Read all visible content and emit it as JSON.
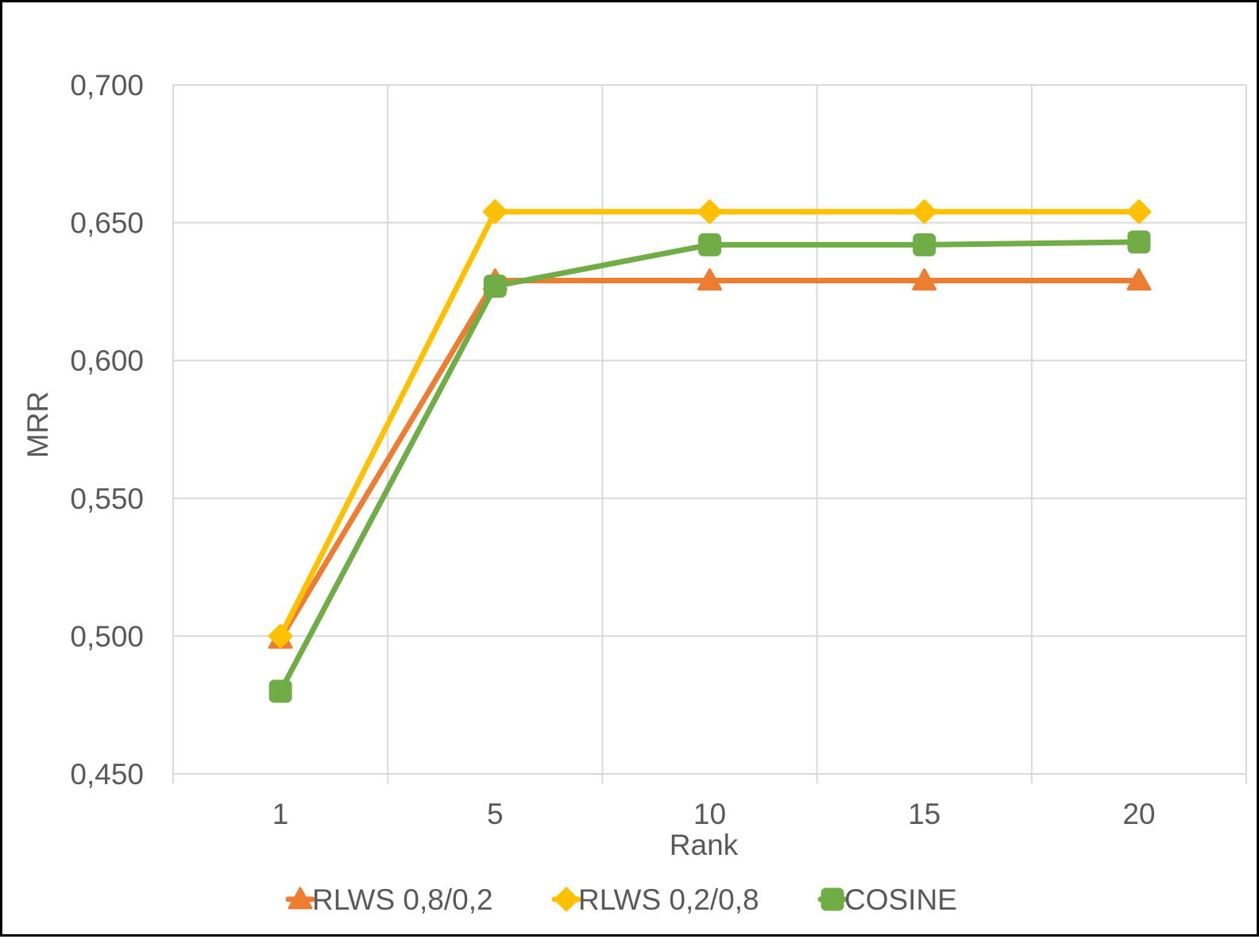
{
  "chart_data": {
    "type": "line",
    "title": "",
    "xlabel": "Rank",
    "ylabel": "MRR",
    "categories": [
      "1",
      "5",
      "10",
      "15",
      "20"
    ],
    "ylim": [
      0.45,
      0.7
    ],
    "y_ticks": [
      "0,700",
      "0,650",
      "0,600",
      "0,550",
      "0,500",
      "0,450"
    ],
    "y_tick_values": [
      0.7,
      0.65,
      0.6,
      0.55,
      0.5,
      0.45
    ],
    "grid": true,
    "legend_position": "bottom",
    "series": [
      {
        "name": "RLWS 0,8/0,2",
        "values": [
          0.499,
          0.629,
          0.629,
          0.629,
          0.629
        ],
        "color": "#ED7D31",
        "marker": "triangle"
      },
      {
        "name": "RLWS 0,2/0,8",
        "values": [
          0.5,
          0.654,
          0.654,
          0.654,
          0.654
        ],
        "color": "#FFC000",
        "marker": "diamond"
      },
      {
        "name": "COSINE",
        "values": [
          0.48,
          0.627,
          0.642,
          0.642,
          0.643
        ],
        "color": "#70AD47",
        "marker": "square"
      }
    ]
  }
}
